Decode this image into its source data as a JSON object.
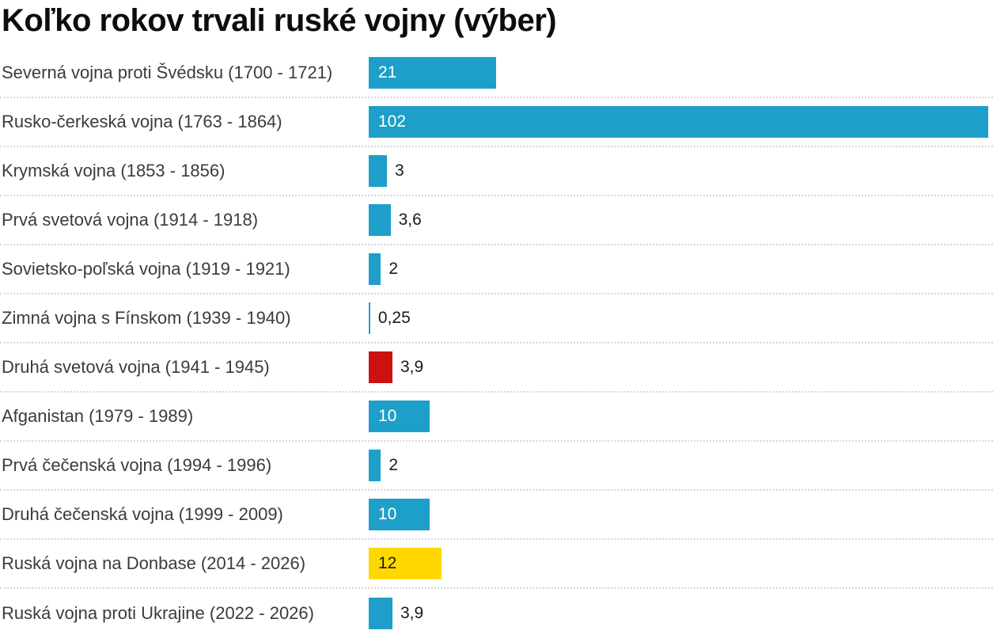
{
  "chart": {
    "title": "Koľko rokov trvali ruské vojny (výber)"
  },
  "colors": {
    "blue": "#1e9fc9",
    "red": "#cc1111",
    "yellow": "#ffd800",
    "value_inside_light": "#ffffff",
    "value_inside_dark": "#1a1a1a",
    "value_outside": "#1a1a1a",
    "label_text": "#3b3b3b",
    "title_text": "#0d0d0d",
    "separator": "#d7d7d7"
  },
  "chart_data": {
    "type": "bar",
    "orientation": "horizontal",
    "title": "Koľko rokov trvali ruské vojny (výber)",
    "xlabel": "",
    "ylabel": "",
    "value_axis_range": [
      0,
      102
    ],
    "grid": false,
    "legend": false,
    "decimal_separator": ",",
    "categories": [
      "Severná vojna proti Švédsku (1700 - 1721)",
      "Rusko-čerkeská vojna (1763 - 1864)",
      "Krymská vojna (1853 - 1856)",
      "Prvá svetová vojna (1914 - 1918)",
      "Sovietsko-poľská vojna (1919 - 1921)",
      "Zimná vojna s Fínskom (1939 - 1940)",
      "Druhá svetová vojna (1941 - 1945)",
      "Afganistan (1979 - 1989)",
      "Prvá čečenská vojna (1994 - 1996)",
      "Druhá čečenská vojna (1999 - 2009)",
      "Ruská vojna na Donbase (2014 - 2026)",
      "Ruská vojna proti Ukrajine (2022 - 2026)"
    ],
    "values": [
      21,
      102,
      3,
      3.6,
      2,
      0.25,
      3.9,
      10,
      2,
      10,
      12,
      3.9
    ],
    "rows": [
      {
        "label": "Severná vojna proti Švédsku (1700 - 1721)",
        "value": 21,
        "display": "21",
        "color": "blue",
        "value_inside": true,
        "value_color": "light"
      },
      {
        "label": "Rusko-čerkeská vojna (1763 - 1864)",
        "value": 102,
        "display": "102",
        "color": "blue",
        "value_inside": true,
        "value_color": "light"
      },
      {
        "label": "Krymská vojna (1853 - 1856)",
        "value": 3,
        "display": "3",
        "color": "blue",
        "value_inside": false,
        "value_color": "dark"
      },
      {
        "label": "Prvá svetová vojna (1914 - 1918)",
        "value": 3.6,
        "display": "3,6",
        "color": "blue",
        "value_inside": false,
        "value_color": "dark"
      },
      {
        "label": "Sovietsko-poľská vojna (1919 - 1921)",
        "value": 2,
        "display": "2",
        "color": "blue",
        "value_inside": false,
        "value_color": "dark"
      },
      {
        "label": "Zimná vojna s Fínskom (1939 - 1940)",
        "value": 0.25,
        "display": "0,25",
        "color": "blue",
        "value_inside": false,
        "value_color": "dark"
      },
      {
        "label": "Druhá svetová vojna (1941 - 1945)",
        "value": 3.9,
        "display": "3,9",
        "color": "red",
        "value_inside": false,
        "value_color": "dark"
      },
      {
        "label": "Afganistan (1979 - 1989)",
        "value": 10,
        "display": "10",
        "color": "blue",
        "value_inside": true,
        "value_color": "light"
      },
      {
        "label": "Prvá čečenská vojna (1994 - 1996)",
        "value": 2,
        "display": "2",
        "color": "blue",
        "value_inside": false,
        "value_color": "dark"
      },
      {
        "label": "Druhá čečenská vojna (1999 - 2009)",
        "value": 10,
        "display": "10",
        "color": "blue",
        "value_inside": true,
        "value_color": "light"
      },
      {
        "label": "Ruská vojna na Donbase (2014 - 2026)",
        "value": 12,
        "display": "12",
        "color": "yellow",
        "value_inside": true,
        "value_color": "dark"
      },
      {
        "label": "Ruská vojna proti Ukrajine (2022 - 2026)",
        "value": 3.9,
        "display": "3,9",
        "color": "blue",
        "value_inside": false,
        "value_color": "dark"
      }
    ]
  }
}
